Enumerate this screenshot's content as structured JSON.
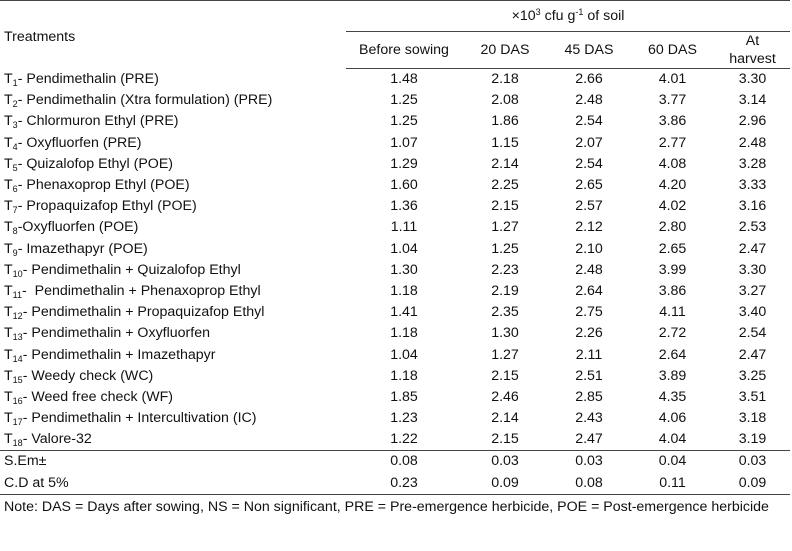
{
  "header": {
    "unit_prefix": "×10",
    "unit_exp": "3",
    "unit_mid": " cfu g",
    "unit_exp2": "-1",
    "unit_suffix": " of soil",
    "treatments_label": "Treatments",
    "columns": [
      "Before sowing",
      "20 DAS",
      "45 DAS",
      "60 DAS",
      "At harvest"
    ]
  },
  "rows": [
    {
      "t": "T",
      "n": "1",
      "name": "- Pendimethalin (PRE)",
      "v": [
        "1.48",
        "2.18",
        "2.66",
        "4.01",
        "3.30"
      ]
    },
    {
      "t": "T",
      "n": "2",
      "name": "- Pendimethalin (Xtra formulation) (PRE)",
      "v": [
        "1.25",
        "2.08",
        "2.48",
        "3.77",
        "3.14"
      ]
    },
    {
      "t": "T",
      "n": "3",
      "name": "- Chlormuron Ethyl (PRE)",
      "v": [
        "1.25",
        "1.86",
        "2.54",
        "3.86",
        "2.96"
      ]
    },
    {
      "t": "T",
      "n": "4",
      "name": "- Oxyfluorfen (PRE)",
      "v": [
        "1.07",
        "1.15",
        "2.07",
        "2.77",
        "2.48"
      ]
    },
    {
      "t": "T",
      "n": "5",
      "name": "- Quizalofop Ethyl (POE)",
      "v": [
        "1.29",
        "2.14",
        "2.54",
        "4.08",
        "3.28"
      ]
    },
    {
      "t": "T",
      "n": "6",
      "name": "- Phenaxoprop Ethyl (POE)",
      "v": [
        "1.60",
        "2.25",
        "2.65",
        "4.20",
        "3.33"
      ]
    },
    {
      "t": "T",
      "n": "7",
      "name": "- Propaquizafop Ethyl (POE)",
      "v": [
        "1.36",
        "2.15",
        "2.57",
        "4.02",
        "3.16"
      ]
    },
    {
      "t": "T",
      "n": "8",
      "name": "-Oxyfluorfen (POE)",
      "v": [
        "1.11",
        "1.27",
        "2.12",
        "2.80",
        "2.53"
      ]
    },
    {
      "t": "T",
      "n": "9",
      "name": "- Imazethapyr (POE)",
      "v": [
        "1.04",
        "1.25",
        "2.10",
        "2.65",
        "2.47"
      ]
    },
    {
      "t": "T",
      "n": "10",
      "name": "- Pendimethalin + Quizalofop Ethyl",
      "v": [
        "1.30",
        "2.23",
        "2.48",
        "3.99",
        "3.30"
      ]
    },
    {
      "t": "T",
      "n": "11",
      "name": "-  Pendimethalin + Phenaxoprop Ethyl",
      "v": [
        "1.18",
        "2.19",
        "2.64",
        "3.86",
        "3.27"
      ]
    },
    {
      "t": "T",
      "n": "12",
      "name": "- Pendimethalin + Propaquizafop Ethyl",
      "v": [
        "1.41",
        "2.35",
        "2.75",
        "4.11",
        "3.40"
      ]
    },
    {
      "t": "T",
      "n": "13",
      "name": "- Pendimethalin + Oxyfluorfen",
      "v": [
        "1.18",
        "1.30",
        "2.26",
        "2.72",
        "2.54"
      ]
    },
    {
      "t": "T",
      "n": "14",
      "name": "- Pendimethalin + Imazethapyr",
      "v": [
        "1.04",
        "1.27",
        "2.11",
        "2.64",
        "2.47"
      ]
    },
    {
      "t": "T",
      "n": "15",
      "name": "- Weedy check (WC)",
      "v": [
        "1.18",
        "2.15",
        "2.51",
        "3.89",
        "3.25"
      ]
    },
    {
      "t": "T",
      "n": "16",
      "name": "- Weed free check (WF)",
      "v": [
        "1.85",
        "2.46",
        "2.85",
        "4.35",
        "3.51"
      ]
    },
    {
      "t": "T",
      "n": "17",
      "name": "- Pendimethalin + Intercultivation (IC)",
      "v": [
        "1.23",
        "2.14",
        "2.43",
        "4.06",
        "3.18"
      ]
    },
    {
      "t": "T",
      "n": "18",
      "name": "- Valore-32",
      "v": [
        "1.22",
        "2.15",
        "2.47",
        "4.04",
        "3.19"
      ]
    }
  ],
  "stats": [
    {
      "label": "S.Em±",
      "v": [
        "0.08",
        "0.03",
        "0.03",
        "0.04",
        "0.03"
      ]
    },
    {
      "label": "C.D at 5%",
      "v": [
        "0.23",
        "0.09",
        "0.08",
        "0.11",
        "0.09"
      ]
    }
  ],
  "note": "Note: DAS = Days after sowing, NS = Non significant, PRE = Pre-emergence herbicide, POE = Post-emergence herbicide"
}
